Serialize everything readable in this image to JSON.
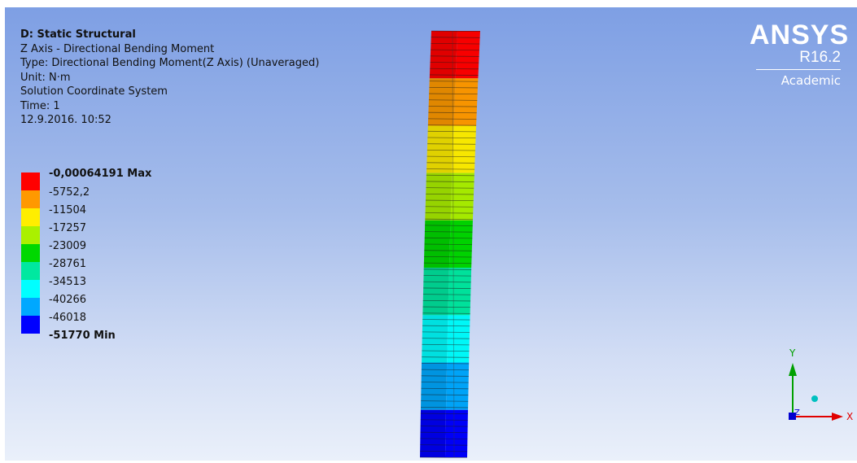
{
  "info": {
    "title": "D: Static Structural",
    "result_name": "Z Axis - Directional Bending Moment",
    "type": "Type: Directional Bending Moment(Z Axis) (Unaveraged)",
    "unit": "Unit: N·m",
    "coordinate_system": "Solution Coordinate System",
    "time": "Time: 1",
    "date": "12.9.2016. 10:52"
  },
  "legend": {
    "entries": [
      {
        "label": "-0,00064191 Max",
        "color": "#ff0000",
        "bold": true
      },
      {
        "label": "-5752,2",
        "color": "#ff9900",
        "bold": false
      },
      {
        "label": "-11504",
        "color": "#ffee00",
        "bold": false
      },
      {
        "label": "-17257",
        "color": "#aaf000",
        "bold": false
      },
      {
        "label": "-23009",
        "color": "#00d800",
        "bold": false
      },
      {
        "label": "-28761",
        "color": "#00e8a0",
        "bold": false
      },
      {
        "label": "-34513",
        "color": "#00ffff",
        "bold": false
      },
      {
        "label": "-40266",
        "color": "#00a8ff",
        "bold": false
      },
      {
        "label": "-46018",
        "color": "#0000ff",
        "bold": false
      },
      {
        "label": "-51770 Min",
        "color": null,
        "bold": true
      }
    ]
  },
  "brand": {
    "name": "ANSYS",
    "version": "R16.2",
    "edition": "Academic"
  },
  "triad": {
    "y_label": "Y",
    "z_label": "Z",
    "x_label": "X",
    "y_color": "#00a000",
    "x_color": "#e00000",
    "z_color": "#0000d0",
    "center_color": "#00c0c0"
  },
  "model": {
    "band_colors": [
      "#ff0000",
      "#ff9900",
      "#ffee00",
      "#aaf000",
      "#00d800",
      "#00e8a0",
      "#00ffff",
      "#00a8ff",
      "#0000ff"
    ]
  }
}
